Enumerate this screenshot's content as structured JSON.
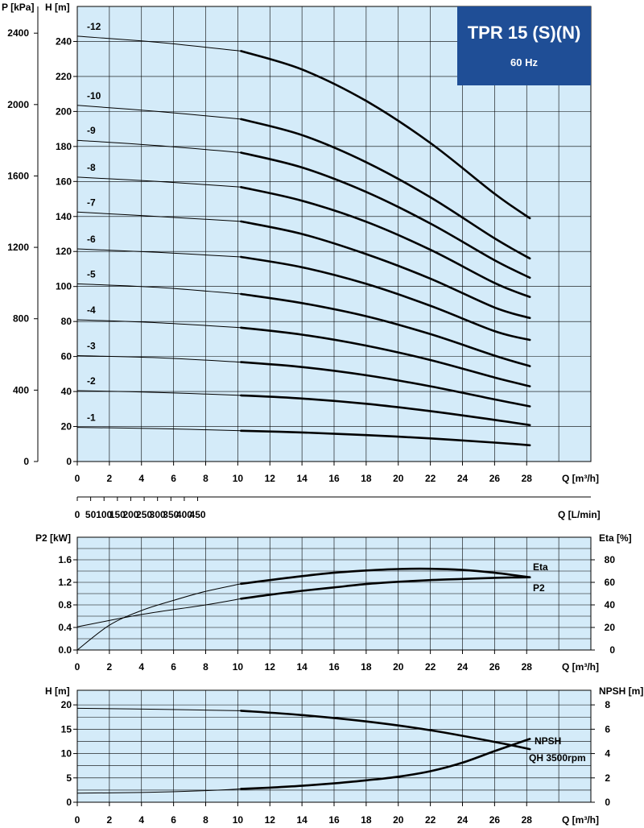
{
  "badge": {
    "title": "TPR 15 (S)(N)",
    "subtitle": "60 Hz",
    "color": "#1f4e96"
  },
  "colors": {
    "plot_bg": "#d4ebf9",
    "grid": "#000000",
    "curve": "#000000"
  },
  "chart_data": [
    {
      "id": "qh",
      "type": "line",
      "left_axis_label": "P [kPa]",
      "axis_label": "H [m]",
      "x_axis_label": "Q [m³/h]",
      "x2_axis_label": "Q [L/min]",
      "xlim": [
        0,
        32
      ],
      "ylim": [
        0,
        260
      ],
      "x_ticks": [
        "0",
        "2",
        "4",
        "6",
        "8",
        "10",
        "12",
        "14",
        "16",
        "18",
        "20",
        "22",
        "24",
        "26",
        "28"
      ],
      "y_ticks": [
        "0",
        "20",
        "40",
        "60",
        "80",
        "100",
        "120",
        "140",
        "160",
        "180",
        "200",
        "220",
        "240"
      ],
      "p_ticks": [
        "0",
        "400",
        "800",
        "1200",
        "1600",
        "2000",
        "2400"
      ],
      "x2_ticks": [
        "0",
        "50",
        "100",
        "150",
        "200",
        "250",
        "300",
        "350",
        "400",
        "450"
      ],
      "grid": true,
      "series": [
        {
          "name": "-1",
          "x": [
            0,
            5,
            10.2,
            14,
            18,
            22,
            26,
            28.2
          ],
          "y": [
            19.5,
            18.8,
            17.6,
            16.6,
            15.1,
            13.2,
            10.8,
            9.3
          ]
        },
        {
          "name": "-2",
          "x": [
            0,
            5,
            10.2,
            14,
            18,
            22,
            26,
            28.2
          ],
          "y": [
            40.5,
            39.5,
            37.8,
            36,
            33,
            28.8,
            23.8,
            20.8
          ]
        },
        {
          "name": "-3",
          "x": [
            0,
            5,
            10.2,
            14,
            18,
            22,
            26,
            28.2
          ],
          "y": [
            60.5,
            59.3,
            56.8,
            54,
            49.3,
            43,
            35.5,
            31.5
          ]
        },
        {
          "name": "-4",
          "x": [
            0,
            5,
            10.2,
            14,
            18,
            22,
            26,
            28.2
          ],
          "y": [
            81,
            79.3,
            76.5,
            72.5,
            66.2,
            58,
            48,
            43
          ]
        },
        {
          "name": "-5",
          "x": [
            0,
            5,
            10.2,
            14,
            18,
            22,
            26,
            28.2
          ],
          "y": [
            101.5,
            99.5,
            95.7,
            90.5,
            83,
            72.8,
            60.5,
            54.5
          ]
        },
        {
          "name": "-6",
          "x": [
            0,
            5,
            10.2,
            14,
            18,
            22,
            26,
            28.2
          ],
          "y": [
            121.5,
            119.5,
            116.9,
            111,
            101.5,
            89,
            74.5,
            69.5
          ]
        },
        {
          "name": "-7",
          "x": [
            0,
            5,
            10.2,
            14,
            18,
            22,
            26,
            28.2
          ],
          "y": [
            142.5,
            140,
            137.2,
            130,
            118.5,
            104.5,
            88,
            82
          ]
        },
        {
          "name": "-8",
          "x": [
            0,
            5,
            10.2,
            14,
            18,
            22,
            26,
            28.2
          ],
          "y": [
            162.5,
            160,
            156.8,
            149,
            137,
            121,
            102,
            94
          ]
        },
        {
          "name": "-9",
          "x": [
            0,
            5,
            10.2,
            14,
            18,
            22,
            26,
            28.2
          ],
          "y": [
            183.5,
            180.5,
            176.5,
            168,
            154,
            136,
            115,
            105
          ]
        },
        {
          "name": "-10",
          "x": [
            0,
            5,
            10.2,
            14,
            18,
            22,
            26,
            28.2
          ],
          "y": [
            203.5,
            200,
            195.6,
            186.5,
            171,
            151,
            127.5,
            116
          ]
        },
        {
          "name": "-12",
          "x": [
            0,
            5,
            10.2,
            14,
            18,
            22,
            26,
            28.2
          ],
          "y": [
            243,
            239.5,
            234.5,
            224,
            206,
            182,
            153,
            139
          ]
        }
      ]
    },
    {
      "id": "power",
      "type": "line",
      "axis_label": "P2 [kW]",
      "right_axis_label": "Eta [%]",
      "x_axis_label": "Q [m³/h]",
      "xlim": [
        0,
        32
      ],
      "ylim": [
        0,
        2.0
      ],
      "ylim_right": [
        0,
        100
      ],
      "x_ticks": [
        "0",
        "2",
        "4",
        "6",
        "8",
        "10",
        "12",
        "14",
        "16",
        "18",
        "20",
        "22",
        "24",
        "26",
        "28"
      ],
      "y_ticks": [
        "0.0",
        "0.4",
        "0.8",
        "1.2",
        "1.6"
      ],
      "y2_ticks": [
        "0",
        "20",
        "40",
        "60",
        "80"
      ],
      "grid": true,
      "series": [
        {
          "name": "Eta",
          "axis": "right",
          "x": [
            0,
            2,
            4,
            6,
            8,
            10.2,
            12,
            14,
            16,
            18,
            20,
            22,
            24,
            26,
            28.2
          ],
          "y": [
            0,
            22,
            35,
            44,
            52,
            58.7,
            62,
            65.5,
            68.5,
            70.5,
            71.8,
            72,
            71,
            68.5,
            64.5
          ]
        },
        {
          "name": "P2",
          "axis": "left",
          "x": [
            0,
            4,
            8,
            10.2,
            12,
            14,
            16,
            18,
            20,
            22,
            24,
            26,
            28.2
          ],
          "y": [
            0.41,
            0.63,
            0.8,
            0.91,
            0.98,
            1.05,
            1.11,
            1.17,
            1.21,
            1.24,
            1.26,
            1.28,
            1.29
          ]
        }
      ]
    },
    {
      "id": "npsh",
      "type": "line",
      "axis_label": "H [m]",
      "right_axis_label": "NPSH [m]",
      "x_axis_label": "Q [m³/h]",
      "xlim": [
        0,
        32
      ],
      "ylim": [
        0,
        23
      ],
      "ylim_right": [
        0,
        9.2
      ],
      "x_ticks": [
        "0",
        "2",
        "4",
        "6",
        "8",
        "10",
        "12",
        "14",
        "16",
        "18",
        "20",
        "22",
        "24",
        "26",
        "28"
      ],
      "y_ticks": [
        "0",
        "5",
        "10",
        "15",
        "20"
      ],
      "y2_ticks": [
        "0",
        "2",
        "4",
        "6",
        "8"
      ],
      "grid": true,
      "series": [
        {
          "name": "QH 3500rpm",
          "axis": "left",
          "x": [
            0,
            5,
            10.2,
            14,
            18,
            22,
            26,
            28.2
          ],
          "y": [
            19.3,
            19.1,
            18.8,
            17.9,
            16.6,
            14.8,
            12.4,
            10.9
          ]
        },
        {
          "name": "NPSH",
          "axis": "right",
          "x": [
            0,
            4,
            8,
            10.2,
            12,
            14,
            16,
            18,
            20,
            22,
            24,
            26,
            28.2
          ],
          "y": [
            0.75,
            0.8,
            0.95,
            1.1,
            1.2,
            1.35,
            1.55,
            1.8,
            2.1,
            2.55,
            3.25,
            4.2,
            5.2
          ]
        }
      ]
    }
  ]
}
